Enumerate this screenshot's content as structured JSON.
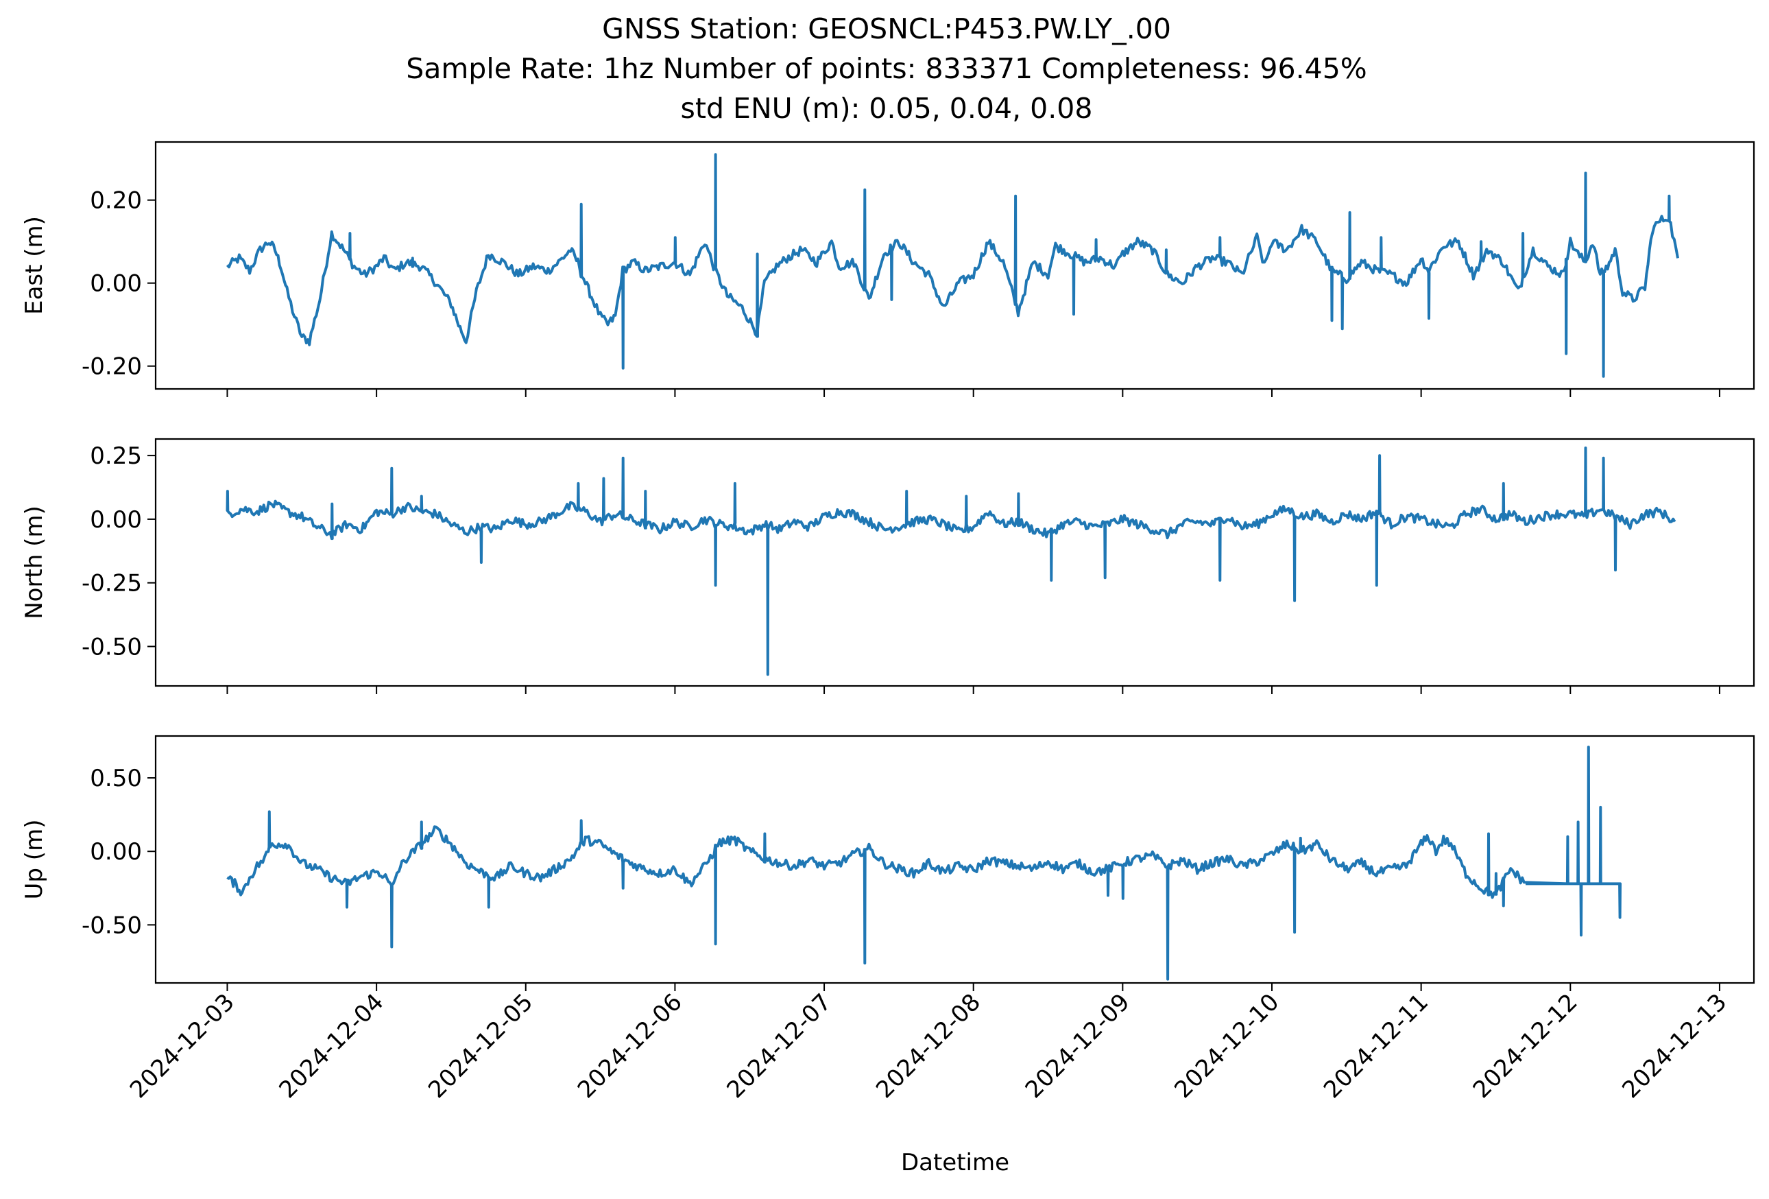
{
  "chart_data": {
    "type": "line",
    "title_lines": [
      "GNSS Station: GEOSNCL:P453.PW.LY_.00",
      "Sample Rate: 1hz   Number of points: 833371    Completeness:  96.45%",
      "std ENU (m):  0.05, 0.04, 0.08"
    ],
    "xlabel": "Datetime",
    "x_ticks": [
      "2024-12-03",
      "2024-12-04",
      "2024-12-05",
      "2024-12-06",
      "2024-12-07",
      "2024-12-08",
      "2024-12-09",
      "2024-12-10",
      "2024-12-11",
      "2024-12-12",
      "2024-12-13"
    ],
    "xlim": [
      -0.48,
      10.23
    ],
    "line_color": "#1f77b4",
    "panels": [
      {
        "ylabel": "East (m)",
        "ylim": [
          -0.255,
          0.34
        ],
        "yticks": [
          -0.2,
          0.0,
          0.2
        ],
        "ytick_labels": [
          "-0.20",
          "0.00",
          "0.20"
        ],
        "x": [
          0.0,
          0.08,
          0.15,
          0.22,
          0.28,
          0.32,
          0.36,
          0.4,
          0.45,
          0.5,
          0.55,
          0.62,
          0.7,
          0.78,
          0.85,
          0.92,
          1.0,
          1.05,
          1.12,
          1.2,
          1.3,
          1.4,
          1.5,
          1.55,
          1.6,
          1.67,
          1.75,
          1.85,
          1.95,
          2.05,
          2.15,
          2.22,
          2.3,
          2.35,
          2.4,
          2.45,
          2.5,
          2.55,
          2.6,
          2.65,
          2.72,
          2.8,
          2.9,
          3.0,
          3.1,
          3.2,
          3.27,
          3.35,
          3.45,
          3.55,
          3.6,
          3.68,
          3.75,
          3.85,
          3.95,
          4.05,
          4.1,
          4.2,
          4.3,
          4.4,
          4.5,
          4.6,
          4.7,
          4.8,
          4.9,
          5.0,
          5.1,
          5.2,
          5.3,
          5.4,
          5.5,
          5.55,
          5.65,
          5.75,
          5.85,
          5.95,
          6.0,
          6.1,
          6.2,
          6.3,
          6.4,
          6.5,
          6.6,
          6.7,
          6.8,
          6.9,
          6.95,
          7.0,
          7.1,
          7.2,
          7.3,
          7.4,
          7.5,
          7.6,
          7.7,
          7.8,
          7.9,
          8.0,
          8.05,
          8.15,
          8.25,
          8.35,
          8.45,
          8.55,
          8.65,
          8.75,
          8.85,
          8.95,
          9.0,
          9.05,
          9.1,
          9.15,
          9.2,
          9.25,
          9.3,
          9.35,
          9.42,
          9.5,
          9.55,
          9.6,
          9.66,
          9.72
        ],
        "y": [
          0.04,
          0.06,
          0.03,
          0.08,
          0.1,
          0.08,
          0.04,
          -0.02,
          -0.08,
          -0.13,
          -0.14,
          -0.04,
          0.12,
          0.08,
          0.04,
          0.02,
          0.04,
          0.06,
          0.03,
          0.05,
          0.04,
          0.0,
          -0.05,
          -0.1,
          -0.14,
          -0.02,
          0.07,
          0.05,
          0.02,
          0.04,
          0.03,
          0.05,
          0.08,
          0.05,
          0.0,
          -0.04,
          -0.08,
          -0.1,
          -0.08,
          0.03,
          0.05,
          0.03,
          0.04,
          0.05,
          0.02,
          0.1,
          0.03,
          -0.03,
          -0.06,
          -0.12,
          0.0,
          0.04,
          0.06,
          0.08,
          0.05,
          0.1,
          0.04,
          0.05,
          -0.04,
          0.07,
          0.1,
          0.05,
          0.02,
          -0.06,
          0.0,
          0.02,
          0.1,
          0.05,
          -0.07,
          0.05,
          0.02,
          0.09,
          0.07,
          0.05,
          0.06,
          0.04,
          0.07,
          0.1,
          0.08,
          0.02,
          0.0,
          0.04,
          0.06,
          0.05,
          0.02,
          0.11,
          0.04,
          0.1,
          0.08,
          0.13,
          0.1,
          0.03,
          0.01,
          0.05,
          0.03,
          0.02,
          0.0,
          0.06,
          0.03,
          0.09,
          0.1,
          0.02,
          0.08,
          0.05,
          -0.02,
          0.08,
          0.04,
          0.02,
          0.1,
          0.07,
          0.05,
          0.1,
          0.02,
          0.04,
          0.08,
          -0.02,
          -0.04,
          -0.01,
          0.13,
          0.15,
          0.16,
          0.06
        ],
        "spikes": [
          [
            3.27,
            0.31
          ],
          [
            4.27,
            0.225
          ],
          [
            5.28,
            0.21
          ],
          [
            2.37,
            0.19
          ],
          [
            7.52,
            0.17
          ],
          [
            9.1,
            0.265
          ],
          [
            8.97,
            -0.17
          ],
          [
            9.22,
            -0.225
          ],
          [
            2.65,
            -0.205
          ],
          [
            5.67,
            -0.075
          ],
          [
            6.65,
            0.11
          ],
          [
            7.47,
            -0.11
          ],
          [
            7.4,
            -0.09
          ],
          [
            8.05,
            -0.085
          ],
          [
            8.68,
            0.12
          ],
          [
            9.66,
            0.21
          ],
          [
            4.45,
            -0.04
          ],
          [
            0.82,
            0.12
          ],
          [
            3.0,
            0.11
          ],
          [
            5.82,
            0.105
          ],
          [
            6.29,
            0.08
          ],
          [
            3.55,
            0.07
          ],
          [
            1.24,
            0.06
          ],
          [
            8.4,
            0.1
          ],
          [
            7.73,
            0.11
          ]
        ]
      },
      {
        "ylabel": "North (m)",
        "ylim": [
          -0.655,
          0.315
        ],
        "yticks": [
          -0.5,
          -0.25,
          0.0,
          0.25
        ],
        "ytick_labels": [
          "-0.50",
          "-0.25",
          "0.00",
          "0.25"
        ],
        "x": [
          0.0,
          0.1,
          0.2,
          0.3,
          0.4,
          0.5,
          0.6,
          0.7,
          0.8,
          0.9,
          1.0,
          1.1,
          1.2,
          1.3,
          1.4,
          1.5,
          1.6,
          1.7,
          1.8,
          1.9,
          2.0,
          2.1,
          2.2,
          2.3,
          2.4,
          2.5,
          2.6,
          2.7,
          2.8,
          2.9,
          3.0,
          3.1,
          3.2,
          3.3,
          3.4,
          3.5,
          3.6,
          3.7,
          3.8,
          3.9,
          4.0,
          4.1,
          4.2,
          4.3,
          4.4,
          4.5,
          4.6,
          4.7,
          4.8,
          4.9,
          5.0,
          5.1,
          5.2,
          5.3,
          5.4,
          5.5,
          5.6,
          5.7,
          5.8,
          5.9,
          6.0,
          6.1,
          6.2,
          6.3,
          6.4,
          6.5,
          6.6,
          6.7,
          6.8,
          6.9,
          7.0,
          7.1,
          7.2,
          7.3,
          7.4,
          7.5,
          7.6,
          7.7,
          7.8,
          7.9,
          8.0,
          8.1,
          8.2,
          8.3,
          8.4,
          8.5,
          8.6,
          8.7,
          8.8,
          8.9,
          9.0,
          9.1,
          9.2,
          9.3,
          9.4,
          9.5,
          9.6,
          9.7
        ],
        "y": [
          0.02,
          0.04,
          0.03,
          0.06,
          0.03,
          0.01,
          -0.03,
          -0.06,
          -0.02,
          -0.04,
          0.03,
          0.02,
          0.05,
          0.03,
          0.02,
          -0.02,
          -0.05,
          -0.03,
          -0.04,
          0.0,
          -0.02,
          -0.01,
          0.02,
          0.05,
          0.03,
          -0.01,
          0.02,
          0.0,
          -0.02,
          -0.04,
          -0.01,
          -0.03,
          0.0,
          -0.02,
          -0.03,
          -0.05,
          -0.02,
          -0.04,
          -0.01,
          -0.03,
          0.01,
          0.03,
          0.02,
          -0.01,
          -0.04,
          -0.03,
          -0.01,
          0.0,
          -0.02,
          -0.05,
          -0.03,
          0.03,
          -0.02,
          -0.01,
          -0.04,
          -0.06,
          -0.02,
          -0.01,
          -0.03,
          -0.02,
          0.0,
          -0.02,
          -0.04,
          -0.06,
          -0.02,
          -0.01,
          -0.02,
          0.01,
          -0.03,
          -0.02,
          0.02,
          0.04,
          0.01,
          0.02,
          -0.01,
          0.02,
          0.0,
          0.03,
          -0.02,
          0.01,
          0.0,
          -0.02,
          -0.03,
          0.02,
          0.04,
          0.0,
          0.02,
          -0.01,
          0.01,
          0.02,
          0.02,
          0.01,
          0.04,
          0.01,
          -0.02,
          0.02,
          0.03,
          -0.01
        ],
        "spikes": [
          [
            3.62,
            -0.61
          ],
          [
            3.27,
            -0.26
          ],
          [
            2.65,
            0.24
          ],
          [
            2.52,
            0.16
          ],
          [
            1.1,
            0.2
          ],
          [
            0.0,
            0.11
          ],
          [
            9.1,
            0.28
          ],
          [
            9.22,
            0.24
          ],
          [
            7.72,
            0.25
          ],
          [
            7.7,
            -0.26
          ],
          [
            7.15,
            -0.32
          ],
          [
            6.65,
            -0.24
          ],
          [
            5.52,
            -0.24
          ],
          [
            5.88,
            -0.23
          ],
          [
            4.55,
            0.11
          ],
          [
            1.7,
            -0.17
          ],
          [
            9.3,
            -0.2
          ],
          [
            8.55,
            0.14
          ],
          [
            3.4,
            0.14
          ],
          [
            2.8,
            0.11
          ],
          [
            2.35,
            0.14
          ],
          [
            5.3,
            0.1
          ],
          [
            4.95,
            0.09
          ],
          [
            0.7,
            0.06
          ],
          [
            1.3,
            0.09
          ]
        ]
      },
      {
        "ylabel": "Up (m)",
        "ylim": [
          -0.895,
          0.785
        ],
        "yticks": [
          -0.5,
          0.0,
          0.5
        ],
        "ytick_labels": [
          "-0.50",
          "0.00",
          "0.50"
        ],
        "x": [
          0.0,
          0.05,
          0.1,
          0.15,
          0.2,
          0.25,
          0.3,
          0.4,
          0.5,
          0.6,
          0.7,
          0.8,
          0.9,
          1.0,
          1.05,
          1.1,
          1.15,
          1.2,
          1.3,
          1.4,
          1.5,
          1.6,
          1.7,
          1.8,
          1.9,
          2.0,
          2.1,
          2.2,
          2.3,
          2.4,
          2.5,
          2.6,
          2.7,
          2.8,
          2.9,
          3.0,
          3.1,
          3.2,
          3.25,
          3.3,
          3.4,
          3.5,
          3.6,
          3.7,
          3.8,
          3.9,
          4.0,
          4.1,
          4.2,
          4.3,
          4.4,
          4.5,
          4.6,
          4.7,
          4.8,
          4.9,
          5.0,
          5.1,
          5.2,
          5.3,
          5.4,
          5.5,
          5.6,
          5.7,
          5.8,
          5.9,
          6.0,
          6.1,
          6.2,
          6.3,
          6.4,
          6.5,
          6.6,
          6.7,
          6.8,
          6.9,
          7.0,
          7.1,
          7.2,
          7.3,
          7.4,
          7.5,
          7.6,
          7.7,
          7.8,
          7.9,
          8.0,
          8.05,
          8.1,
          8.15,
          8.2,
          8.3,
          8.4,
          8.5,
          8.6,
          8.7
        ],
        "y": [
          -0.18,
          -0.22,
          -0.28,
          -0.18,
          -0.1,
          -0.05,
          0.05,
          0.05,
          -0.08,
          -0.12,
          -0.18,
          -0.22,
          -0.17,
          -0.14,
          -0.16,
          -0.25,
          -0.12,
          -0.05,
          0.05,
          0.15,
          0.05,
          -0.08,
          -0.14,
          -0.18,
          -0.1,
          -0.15,
          -0.18,
          -0.12,
          -0.05,
          0.08,
          0.05,
          -0.02,
          -0.08,
          -0.12,
          -0.15,
          -0.12,
          -0.22,
          -0.1,
          -0.02,
          0.06,
          0.08,
          0.0,
          -0.05,
          -0.08,
          -0.1,
          -0.06,
          -0.1,
          -0.08,
          -0.02,
          0.02,
          -0.08,
          -0.12,
          -0.15,
          -0.08,
          -0.14,
          -0.1,
          -0.13,
          -0.06,
          -0.08,
          -0.1,
          -0.12,
          -0.07,
          -0.12,
          -0.08,
          -0.14,
          -0.12,
          -0.08,
          -0.05,
          -0.03,
          -0.1,
          -0.06,
          -0.12,
          -0.08,
          -0.05,
          -0.1,
          -0.07,
          -0.02,
          0.05,
          0.0,
          0.05,
          -0.06,
          -0.12,
          -0.08,
          -0.15,
          -0.12,
          -0.1,
          0.05,
          0.1,
          0.0,
          0.08,
          0.05,
          -0.15,
          -0.25,
          -0.3,
          -0.12,
          -0.22
        ],
        "spikes": [
          [
            9.12,
            0.71
          ],
          [
            9.2,
            0.3
          ],
          [
            9.05,
            0.2
          ],
          [
            8.98,
            0.1
          ],
          [
            7.19,
            0.09
          ],
          [
            2.37,
            0.21
          ],
          [
            0.28,
            0.27
          ],
          [
            1.3,
            0.2
          ],
          [
            6.3,
            -0.87
          ],
          [
            4.27,
            -0.76
          ],
          [
            3.27,
            -0.63
          ],
          [
            1.1,
            -0.65
          ],
          [
            7.15,
            -0.55
          ],
          [
            9.07,
            -0.57
          ],
          [
            8.55,
            -0.37
          ],
          [
            9.33,
            -0.45
          ],
          [
            6.0,
            -0.32
          ],
          [
            2.65,
            -0.25
          ],
          [
            5.9,
            -0.3
          ],
          [
            0.8,
            -0.38
          ],
          [
            1.75,
            -0.38
          ],
          [
            8.5,
            -0.15
          ],
          [
            8.45,
            0.12
          ],
          [
            3.6,
            0.12
          ]
        ]
      }
    ]
  }
}
